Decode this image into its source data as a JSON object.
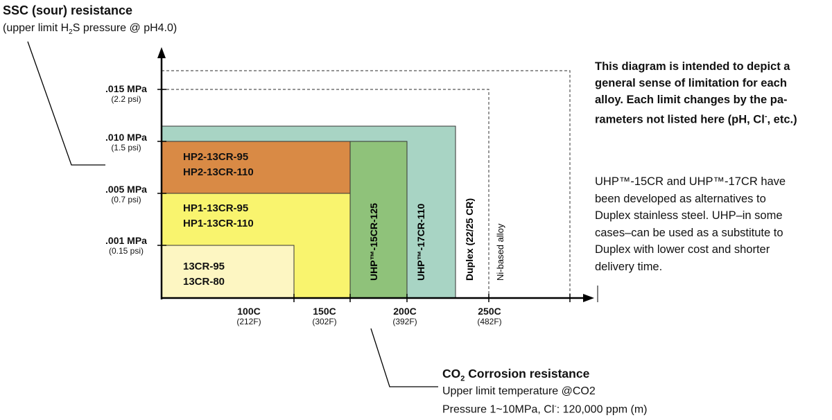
{
  "y_axis": {
    "title": "SSC (sour) resistance",
    "subtitle_pre": "(upper limit H",
    "subtitle_sub": "2",
    "subtitle_post": "S pressure @ pH4.0)",
    "ticks": [
      {
        "label": ".015 MPa",
        "sub": "(2.2 psi)"
      },
      {
        "label": ".010 MPa",
        "sub": "(1.5 psi)"
      },
      {
        "label": ".005 MPa",
        "sub": "(0.7 psi)"
      },
      {
        "label": ".001 MPa",
        "sub": "(0.15 psi)"
      }
    ]
  },
  "x_axis": {
    "title_pre": "CO",
    "title_sub": "2",
    "title_post": " Corrosion resistance",
    "line1": "Upper limit temperature @CO2",
    "line2_pre": "Pressure 1~10MPa, Cl",
    "line2_sup": "-",
    "line2_post": ": 120,000 ppm (m)",
    "ticks": [
      {
        "label": "100C",
        "sub": "(212F)"
      },
      {
        "label": "150C",
        "sub": "(302F)"
      },
      {
        "label": "200C",
        "sub": "(392F)"
      },
      {
        "label": "250C",
        "sub": "(482F)"
      }
    ]
  },
  "regions": [
    {
      "id": "13cr",
      "lines": [
        "13CR-95",
        "13CR-80"
      ],
      "color": "#fdf6c2"
    },
    {
      "id": "hp1",
      "lines": [
        "HP1-13CR-95",
        "HP1-13CR-110"
      ],
      "color": "#f9f46e"
    },
    {
      "id": "hp2",
      "lines": [
        "HP2-13CR-95",
        "HP2-13CR-110"
      ],
      "color": "#d98a45"
    },
    {
      "id": "uhp15",
      "label": "UHP™-15CR-125",
      "color": "#8fc27a"
    },
    {
      "id": "uhp17",
      "label": "UHP™-17CR-110",
      "color": "#a8d4c4"
    },
    {
      "id": "duplex",
      "label": "Duplex (22/25 CR)"
    },
    {
      "id": "nibased",
      "label": "Ni-based alloy"
    }
  ],
  "note_bold": {
    "line1": "This diagram is intended to depict a",
    "line2": "general sense of limitation for each",
    "line3": "alloy. Each limit changes by the pa-",
    "line4_pre": "rameters not listed here (pH, Cl",
    "line4_sup": "-",
    "line4_post": ", etc.)"
  },
  "note_lines": [
    "UHP™-15CR and UHP™-17CR have",
    "been developed as alternatives to",
    "Duplex stainless steel. UHP–in some",
    "cases–can be used as a substitute to",
    "Duplex with lower cost and shorter",
    "delivery time."
  ],
  "colors": {
    "axis": "#000000",
    "dashed": "#555555",
    "border": "#333333"
  }
}
